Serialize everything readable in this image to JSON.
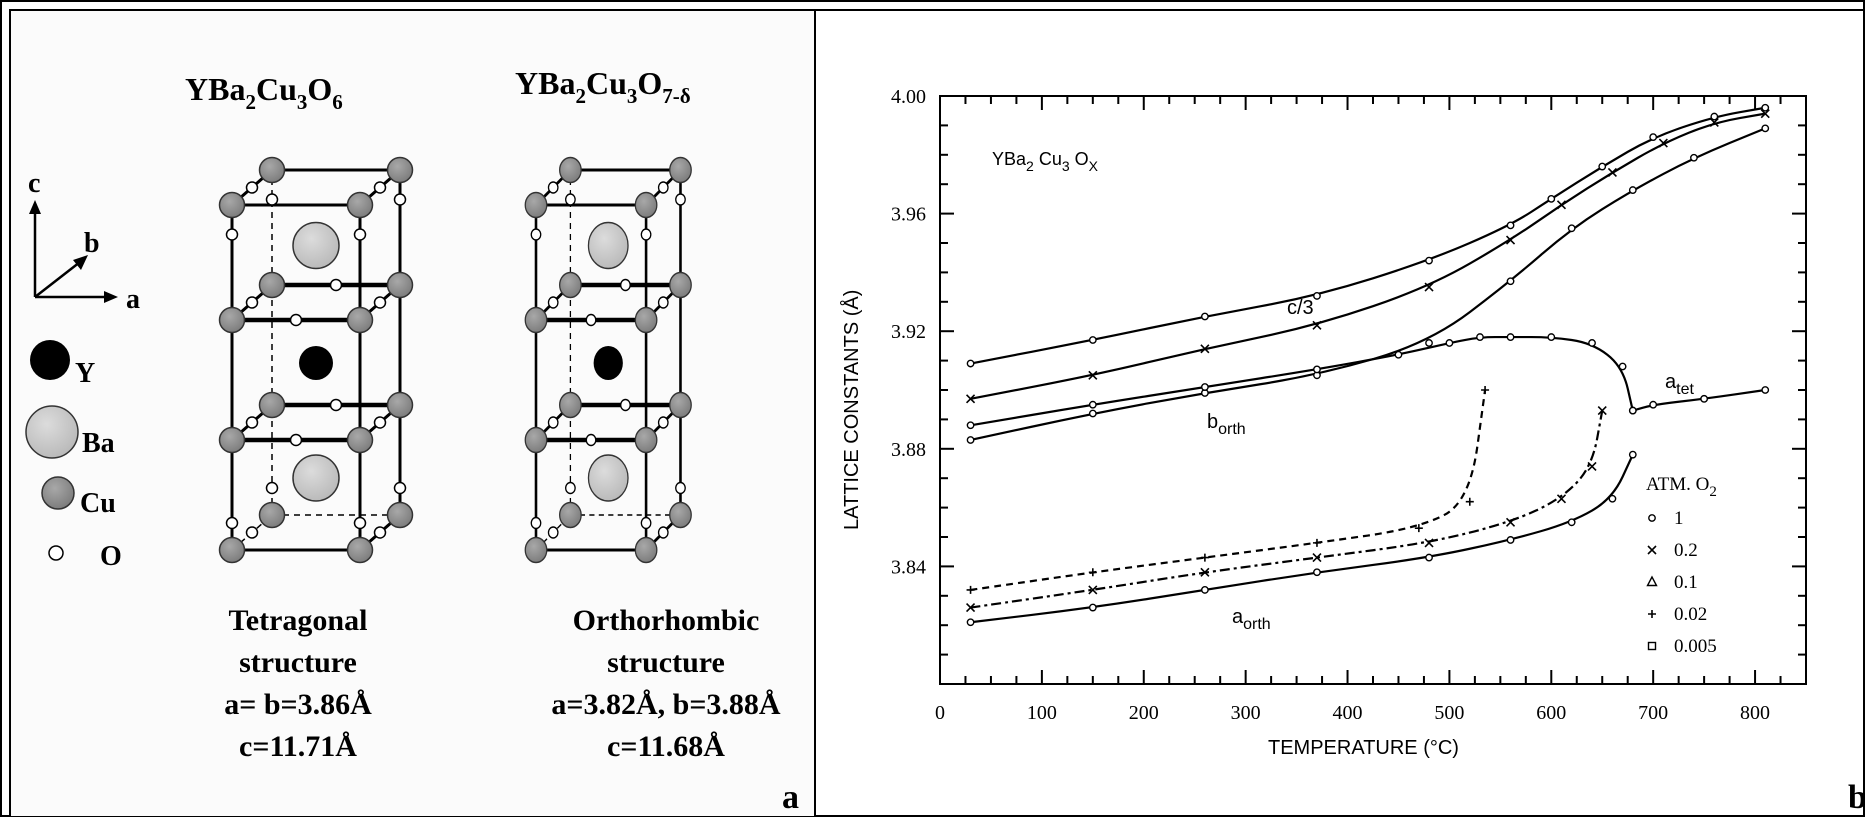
{
  "panel_a": {
    "label": "a",
    "formula_left": {
      "base": "YBa",
      "s1": "2",
      "mid": "Cu",
      "s2": "3",
      "end": "O",
      "s3": "6"
    },
    "formula_right": {
      "base": "YBa",
      "s1": "2",
      "mid": "Cu",
      "s2": "3",
      "end": "O",
      "s3": "7-δ"
    },
    "axes": {
      "c": "c",
      "b": "b",
      "a": "a"
    },
    "legend": [
      {
        "symbol": "Y",
        "color": "#000000"
      },
      {
        "symbol": "Ba",
        "color": "#c8c8c8"
      },
      {
        "symbol": "Cu",
        "color": "#8c8c8c"
      },
      {
        "symbol": "O",
        "color": "#ffffff"
      }
    ],
    "left_caption": [
      "Tetragonal",
      "structure",
      "a= b=3.86Å",
      "c=11.71Å"
    ],
    "right_caption": [
      "Orthorhombic",
      "structure",
      "a=3.82Å, b=3.88Å",
      "c=11.68Å"
    ]
  },
  "panel_b": {
    "label": "b",
    "ylabel": "LATTICE  CONSTANTS (Å)",
    "xlabel": "TEMPERATURE  (°C)",
    "inset_formula": {
      "base": "YBa",
      "s1": "2",
      "mid": " Cu",
      "s2": "3",
      "end": " O",
      "s3": "X"
    },
    "curve_labels": {
      "c3": "c/3",
      "borth": {
        "main": "b",
        "sub": "orth"
      },
      "aorth": {
        "main": "a",
        "sub": "orth"
      },
      "atet": {
        "main": "a",
        "sub": "tet"
      }
    },
    "legend_title": {
      "main": "ATM.  O",
      "sub": "2"
    },
    "legend_items": [
      {
        "marker": "circle",
        "label": "1"
      },
      {
        "marker": "x",
        "label": "0.2"
      },
      {
        "marker": "triangle",
        "label": "0.1"
      },
      {
        "marker": "plus",
        "label": "0.02"
      },
      {
        "marker": "square",
        "label": "0.005"
      }
    ]
  },
  "chart_data": {
    "type": "line",
    "xlim": [
      0,
      850
    ],
    "ylim": [
      3.8,
      4.0
    ],
    "x_ticks": [
      "0",
      "100",
      "200",
      "300",
      "400",
      "500",
      "600",
      "700",
      "800"
    ],
    "y_ticks": [
      "4.00",
      "3.96",
      "3.92",
      "3.88",
      "3.84"
    ],
    "series": [
      {
        "name": "1",
        "x": [
          30,
          150,
          260,
          370,
          480,
          560,
          600,
          650,
          700,
          760,
          810
        ],
        "y": [
          3.909,
          3.917,
          3.925,
          3.932,
          3.944,
          3.956,
          3.965,
          3.976,
          3.986,
          3.993,
          3.996
        ]
      },
      {
        "name": "0.2",
        "x": [
          30,
          150,
          260,
          370,
          480,
          560,
          610,
          660,
          710,
          760,
          810
        ],
        "y": [
          3.897,
          3.905,
          3.914,
          3.922,
          3.935,
          3.951,
          3.963,
          3.974,
          3.984,
          3.991,
          3.994
        ]
      },
      {
        "name": "1",
        "x": [
          30,
          150,
          260,
          370,
          480,
          560,
          620,
          680,
          740,
          810
        ],
        "y": [
          3.883,
          3.892,
          3.899,
          3.905,
          3.916,
          3.937,
          3.955,
          3.968,
          3.979,
          3.989
        ]
      },
      {
        "name": "1",
        "x": [
          30,
          150,
          260,
          370,
          450,
          500,
          530,
          560,
          600,
          640,
          670,
          680
        ],
        "y": [
          3.888,
          3.895,
          3.901,
          3.907,
          3.912,
          3.916,
          3.918,
          3.918,
          3.918,
          3.916,
          3.908,
          3.893
        ]
      },
      {
        "name": "1",
        "x": [
          680,
          700,
          750,
          810
        ],
        "y": [
          3.893,
          3.895,
          3.897,
          3.9
        ]
      },
      {
        "name": "1",
        "x": [
          30,
          150,
          260,
          370,
          480,
          560,
          620,
          660,
          680
        ],
        "y": [
          3.821,
          3.826,
          3.832,
          3.838,
          3.843,
          3.849,
          3.855,
          3.863,
          3.878
        ]
      },
      {
        "name": "0.2",
        "x": [
          30,
          150,
          260,
          370,
          480,
          560,
          610,
          640,
          650
        ],
        "y": [
          3.826,
          3.832,
          3.838,
          3.843,
          3.848,
          3.855,
          3.863,
          3.874,
          3.893
        ]
      },
      {
        "name": "0.02",
        "x": [
          30,
          150,
          260,
          370,
          470,
          520,
          535
        ],
        "y": [
          3.832,
          3.838,
          3.843,
          3.848,
          3.853,
          3.862,
          3.9
        ]
      }
    ]
  }
}
